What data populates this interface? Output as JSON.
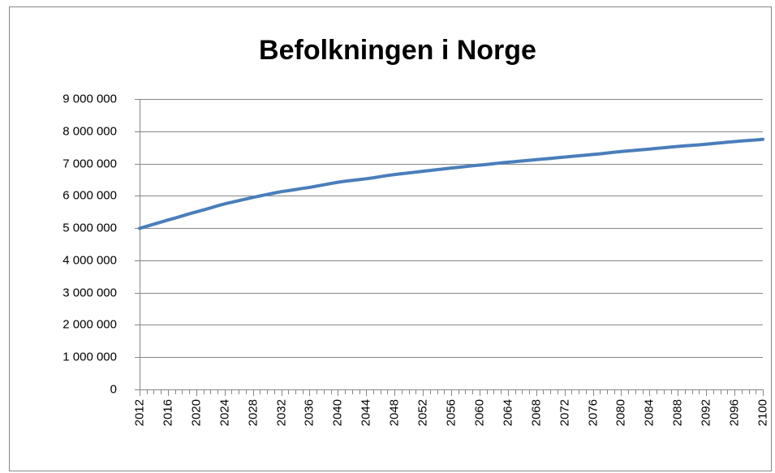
{
  "chart_data": {
    "type": "line",
    "title": "Befolkningen i Norge",
    "x": [
      2012,
      2013,
      2014,
      2015,
      2016,
      2017,
      2018,
      2019,
      2020,
      2021,
      2022,
      2023,
      2024,
      2025,
      2026,
      2027,
      2028,
      2029,
      2030,
      2031,
      2032,
      2033,
      2034,
      2035,
      2036,
      2037,
      2038,
      2039,
      2040,
      2041,
      2042,
      2043,
      2044,
      2045,
      2046,
      2047,
      2048,
      2049,
      2050,
      2051,
      2052,
      2053,
      2054,
      2055,
      2056,
      2057,
      2058,
      2059,
      2060,
      2061,
      2062,
      2063,
      2064,
      2065,
      2066,
      2067,
      2068,
      2069,
      2070,
      2071,
      2072,
      2073,
      2074,
      2075,
      2076,
      2077,
      2078,
      2079,
      2080,
      2081,
      2082,
      2083,
      2084,
      2085,
      2086,
      2087,
      2088,
      2089,
      2090,
      2091,
      2092,
      2093,
      2094,
      2095,
      2096,
      2097,
      2098,
      2099,
      2100
    ],
    "series": [
      {
        "color": "#4a7ebb",
        "values": [
          4990000,
          5055000,
          5120000,
          5185000,
          5250000,
          5310000,
          5375000,
          5440000,
          5500000,
          5560000,
          5625000,
          5690000,
          5750000,
          5800000,
          5850000,
          5900000,
          5950000,
          5995000,
          6040000,
          6085000,
          6130000,
          6160000,
          6195000,
          6230000,
          6260000,
          6300000,
          6340000,
          6380000,
          6420000,
          6450000,
          6475000,
          6500000,
          6530000,
          6560000,
          6595000,
          6630000,
          6660000,
          6685000,
          6710000,
          6735000,
          6760000,
          6785000,
          6810000,
          6835000,
          6860000,
          6880000,
          6905000,
          6930000,
          6950000,
          6970000,
          6995000,
          7020000,
          7040000,
          7060000,
          7080000,
          7100000,
          7120000,
          7140000,
          7160000,
          7180000,
          7200000,
          7220000,
          7240000,
          7260000,
          7280000,
          7300000,
          7325000,
          7350000,
          7370000,
          7390000,
          7410000,
          7430000,
          7450000,
          7470000,
          7490000,
          7510000,
          7530000,
          7550000,
          7565000,
          7580000,
          7600000,
          7620000,
          7640000,
          7660000,
          7680000,
          7700000,
          7715000,
          7730000,
          7750000
        ]
      }
    ],
    "xlim": [
      2012,
      2100
    ],
    "xticks": [
      2012,
      2016,
      2020,
      2024,
      2028,
      2032,
      2036,
      2040,
      2044,
      2048,
      2052,
      2056,
      2060,
      2064,
      2068,
      2072,
      2076,
      2080,
      2084,
      2088,
      2092,
      2096,
      2100
    ],
    "ylim": [
      0,
      9000000
    ],
    "yticks": [
      0,
      {
        "value": 1000000,
        "label": "1 000 000"
      },
      {
        "value": 2000000,
        "label": "2 000 000"
      },
      {
        "value": 3000000,
        "label": "3 000 000"
      },
      {
        "value": 4000000,
        "label": "4 000 000"
      },
      {
        "value": 5000000,
        "label": "5 000 000"
      },
      {
        "value": 6000000,
        "label": "6 000 000"
      },
      {
        "value": 7000000,
        "label": "7 000 000"
      },
      {
        "value": 8000000,
        "label": "8 000 000"
      },
      {
        "value": 9000000,
        "label": "9 000 000"
      }
    ],
    "grid": true
  }
}
